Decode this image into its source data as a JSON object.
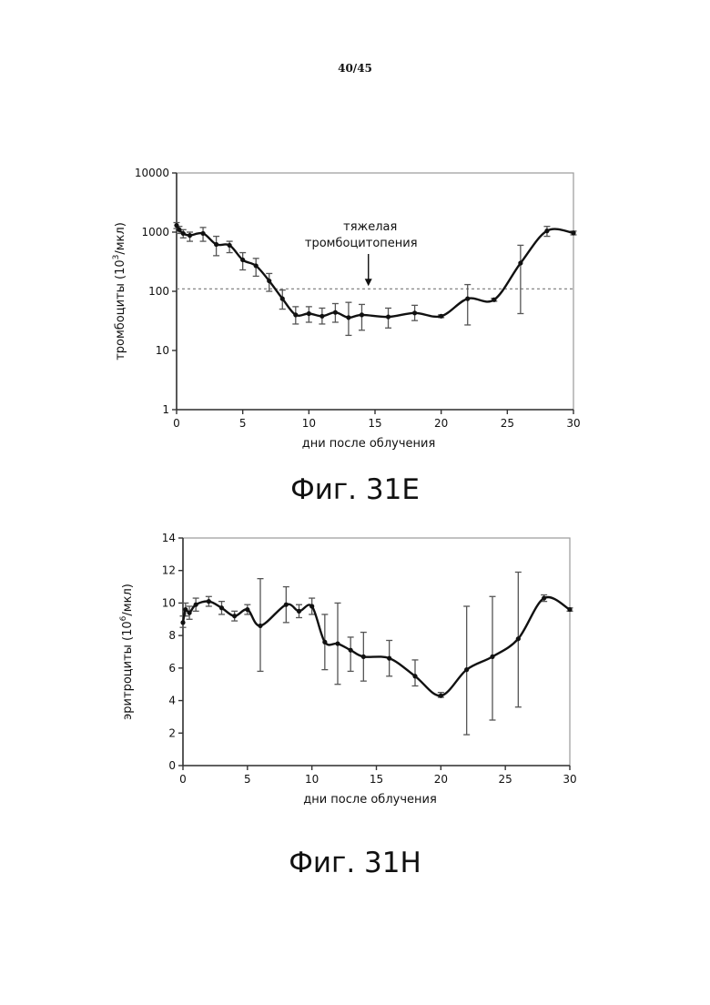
{
  "page_number": "40/45",
  "figures": [
    {
      "caption": "Фиг. 31E"
    },
    {
      "caption": "Фиг. 31H"
    }
  ],
  "chart_data": [
    {
      "type": "line",
      "title": "",
      "xlabel": "дни после облучения",
      "ylabel_main": "тромбоциты (10",
      "ylabel_sup": "3",
      "ylabel_end": "/мкл)",
      "y_scale": "log",
      "xlim": [
        0,
        30
      ],
      "ylim": [
        1,
        10000
      ],
      "x_ticks": [
        0,
        5,
        10,
        15,
        20,
        25,
        30
      ],
      "y_ticks": [
        1,
        10,
        100,
        1000,
        10000
      ],
      "y_tick_labels": [
        "1",
        "10",
        "100",
        "1000",
        "10000"
      ],
      "grid": false,
      "threshold": {
        "y": 110,
        "style": "dashed"
      },
      "annotation": {
        "lines": [
          "тяжелая",
          "тромбоцитопения"
        ],
        "arrow_x": 14.5
      },
      "series": [
        {
          "x": [
            0,
            0.2,
            0.5,
            1,
            2,
            3,
            4,
            5,
            6,
            7,
            8,
            9,
            10,
            11,
            12,
            13,
            14,
            16,
            18,
            20,
            22,
            24,
            26,
            28,
            30
          ],
          "y": [
            1300,
            1100,
            950,
            880,
            950,
            620,
            600,
            340,
            270,
            150,
            75,
            40,
            42,
            38,
            44,
            36,
            40,
            37,
            43,
            38,
            75,
            72,
            300,
            1050,
            970
          ],
          "lo": [
            1150,
            950,
            800,
            700,
            700,
            400,
            450,
            230,
            180,
            100,
            50,
            28,
            30,
            28,
            30,
            18,
            22,
            24,
            32,
            36,
            27,
            68,
            42,
            850,
            900
          ],
          "hi": [
            1450,
            1250,
            1100,
            1000,
            1200,
            850,
            700,
            450,
            360,
            200,
            105,
            55,
            55,
            52,
            62,
            65,
            60,
            52,
            58,
            40,
            130,
            76,
            600,
            1250,
            1040
          ]
        }
      ]
    },
    {
      "type": "line",
      "title": "",
      "xlabel": "дни после облучения",
      "ylabel_main": "эритроциты (10",
      "ylabel_sup": "6",
      "ylabel_end": "/мкл)",
      "y_scale": "linear",
      "xlim": [
        0,
        30
      ],
      "ylim": [
        0,
        14
      ],
      "x_ticks": [
        0,
        5,
        10,
        15,
        20,
        25,
        30
      ],
      "y_ticks": [
        0,
        2,
        4,
        6,
        8,
        10,
        12,
        14
      ],
      "y_tick_labels": [
        "0",
        "2",
        "4",
        "6",
        "8",
        "10",
        "12",
        "14"
      ],
      "grid": false,
      "series": [
        {
          "x": [
            0,
            0.2,
            0.5,
            1,
            2,
            3,
            4,
            5,
            6,
            8,
            9,
            10,
            11,
            12,
            13,
            14,
            16,
            18,
            20,
            22,
            24,
            26,
            28,
            30
          ],
          "y": [
            8.8,
            9.6,
            9.4,
            9.9,
            10.1,
            9.7,
            9.2,
            9.6,
            8.6,
            9.9,
            9.5,
            9.8,
            7.6,
            7.5,
            7.1,
            6.7,
            6.6,
            5.5,
            4.3,
            5.9,
            6.7,
            7.8,
            10.3,
            9.6
          ],
          "lo": [
            8.5,
            9.2,
            9.0,
            9.5,
            9.8,
            9.3,
            8.9,
            9.3,
            5.8,
            8.8,
            9.1,
            9.3,
            5.9,
            5.0,
            5.8,
            5.2,
            5.5,
            4.9,
            4.2,
            1.9,
            2.8,
            3.6,
            10.1,
            9.5
          ],
          "hi": [
            9.2,
            10.0,
            9.8,
            10.3,
            10.4,
            10.1,
            9.5,
            9.9,
            11.5,
            11.0,
            9.9,
            10.3,
            9.3,
            10.0,
            7.9,
            8.2,
            7.7,
            6.5,
            4.5,
            9.8,
            10.4,
            11.9,
            10.5,
            9.7
          ]
        }
      ]
    }
  ]
}
